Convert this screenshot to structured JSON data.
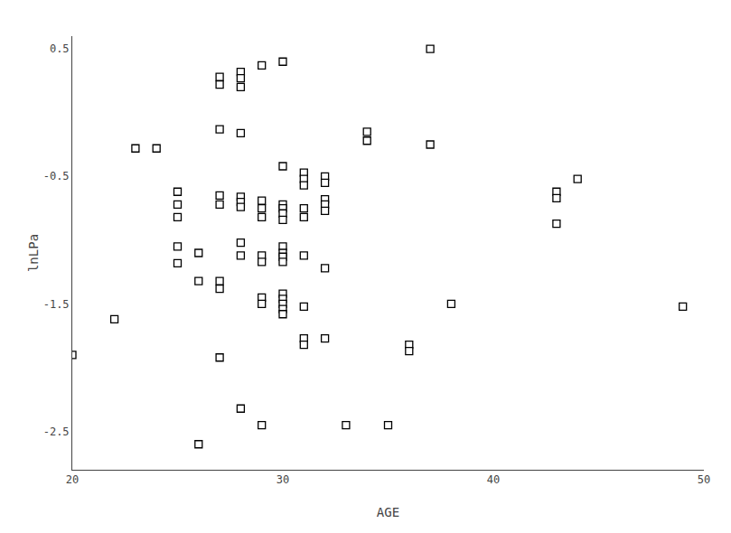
{
  "chart_data": {
    "type": "scatter",
    "xlabel": "AGE",
    "ylabel": "lnLPa",
    "marker": "square",
    "color": "#000000",
    "grid": false,
    "xlim": [
      20,
      50
    ],
    "ylim": [
      -2.8,
      0.6
    ],
    "xticks": [
      20,
      30,
      40,
      50
    ],
    "yticks": [
      0.5,
      -0.5,
      -1.5,
      -2.5
    ],
    "x": [
      20,
      22,
      23,
      24,
      25,
      25,
      25,
      25,
      25,
      26,
      26,
      26,
      27,
      27,
      27,
      27,
      27,
      27,
      27,
      27,
      28,
      28,
      28,
      28,
      28,
      28,
      28,
      28,
      28,
      28,
      29,
      29,
      29,
      29,
      29,
      29,
      29,
      29,
      29,
      30,
      30,
      30,
      30,
      30,
      30,
      30,
      30,
      30,
      30,
      30,
      30,
      30,
      30,
      30,
      31,
      31,
      31,
      31,
      31,
      31,
      31,
      31,
      31,
      32,
      32,
      32,
      32,
      32,
      32,
      32,
      33,
      34,
      34,
      35,
      36,
      36,
      37,
      37,
      38,
      43,
      43,
      43,
      44,
      49
    ],
    "values": [
      -1.9,
      -1.62,
      -0.28,
      -0.28,
      -0.62,
      -0.72,
      -0.82,
      -1.05,
      -1.18,
      -1.1,
      -1.32,
      -2.6,
      0.28,
      0.22,
      -0.13,
      -0.65,
      -0.72,
      -1.32,
      -1.38,
      -1.92,
      0.32,
      0.27,
      0.2,
      -0.16,
      -0.66,
      -0.7,
      -0.74,
      -1.02,
      -1.12,
      -2.32,
      0.37,
      -0.69,
      -0.75,
      -0.82,
      -1.12,
      -1.17,
      -1.45,
      -1.5,
      -2.45,
      0.4,
      -0.42,
      -0.72,
      -0.75,
      -0.79,
      -0.84,
      -1.05,
      -1.1,
      -1.13,
      -1.17,
      -1.42,
      -1.46,
      -1.5,
      -1.54,
      -1.58,
      -0.47,
      -0.52,
      -0.57,
      -0.75,
      -0.82,
      -1.12,
      -1.52,
      -1.77,
      -1.82,
      -0.5,
      -0.55,
      -0.68,
      -0.72,
      -0.77,
      -1.22,
      -1.77,
      -2.45,
      -0.15,
      -0.22,
      -2.45,
      -1.82,
      -1.87,
      0.5,
      -0.25,
      -1.5,
      -0.62,
      -0.67,
      -0.87,
      -0.52,
      -1.52
    ]
  }
}
